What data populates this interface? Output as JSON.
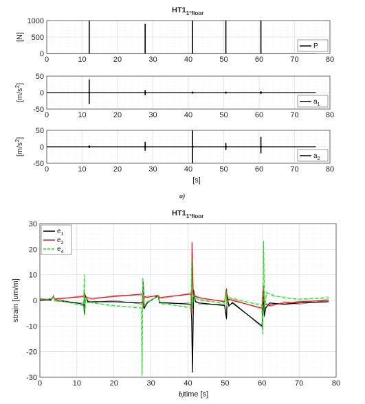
{
  "captions": [
    "a)",
    "b)"
  ],
  "chart_data": [
    {
      "type": "line",
      "title": "HT1",
      "title_sub": "1°floor",
      "xlabel": "",
      "ylabel": "[N]",
      "xlim": [
        0,
        80
      ],
      "ylim": [
        0,
        1000
      ],
      "xticks": [
        0,
        10,
        20,
        30,
        40,
        50,
        60,
        70,
        80
      ],
      "yticks": [
        0,
        500,
        1000
      ],
      "grid": true,
      "legend_position": "bottom-right",
      "series": [
        {
          "name": "P",
          "color": "#000000",
          "spikes": [
            {
              "x": 12.0,
              "y": 1000
            },
            {
              "x": 27.8,
              "y": 900
            },
            {
              "x": 41.2,
              "y": 1000
            },
            {
              "x": 50.6,
              "y": 1000
            },
            {
              "x": 60.5,
              "y": 1000
            }
          ]
        }
      ]
    },
    {
      "type": "line",
      "title": "",
      "xlabel": "",
      "ylabel": "[m/s",
      "ylabel_sup": "2",
      "ylabel_end": "]",
      "xlim": [
        0,
        80
      ],
      "ylim": [
        -50,
        50
      ],
      "xticks": [
        0,
        10,
        20,
        30,
        40,
        50,
        60,
        70,
        80
      ],
      "yticks": [
        -50,
        0,
        50
      ],
      "grid": true,
      "legend_position": "bottom-right",
      "series": [
        {
          "name": "a",
          "name_sub": "1",
          "color": "#000000",
          "spikes": [
            {
              "x": 12.0,
              "y": 40,
              "y2": -35
            },
            {
              "x": 27.8,
              "y": 8,
              "y2": -8
            },
            {
              "x": 41.2,
              "y": 3,
              "y2": -3
            },
            {
              "x": 50.6,
              "y": 3,
              "y2": -3
            },
            {
              "x": 60.5,
              "y": 4,
              "y2": -4
            }
          ]
        }
      ]
    },
    {
      "type": "line",
      "title": "",
      "xlabel": "[s]",
      "ylabel": "[m/s",
      "ylabel_sup": "2",
      "ylabel_end": "]",
      "xlim": [
        0,
        80
      ],
      "ylim": [
        -50,
        50
      ],
      "xticks": [
        0,
        10,
        20,
        30,
        40,
        50,
        60,
        70,
        80
      ],
      "yticks": [
        -50,
        0,
        50
      ],
      "grid": true,
      "legend_position": "bottom-right",
      "series": [
        {
          "name": "a",
          "name_sub": "2",
          "color": "#000000",
          "spikes": [
            {
              "x": 12.0,
              "y": 4,
              "y2": -4
            },
            {
              "x": 27.8,
              "y": 15,
              "y2": -12
            },
            {
              "x": 41.2,
              "y": 50,
              "y2": -50
            },
            {
              "x": 50.6,
              "y": 12,
              "y2": -10
            },
            {
              "x": 60.5,
              "y": 30,
              "y2": -20
            }
          ]
        }
      ]
    },
    {
      "type": "line",
      "title": "HT1",
      "title_sub": "1°floor",
      "xlabel": "time [s]",
      "ylabel": "strain [um/m]",
      "xlim": [
        0,
        80
      ],
      "ylim": [
        -30,
        30
      ],
      "xticks": [
        0,
        10,
        20,
        30,
        40,
        50,
        60,
        70,
        80
      ],
      "yticks": [
        -30,
        -20,
        -10,
        0,
        10,
        20,
        30
      ],
      "grid": true,
      "legend_position": "top-left",
      "series": [
        {
          "name": "e",
          "name_sub": "1",
          "color": "#000000",
          "dash": "solid",
          "x": [
            0,
            3,
            3.7,
            4,
            11.9,
            12.0,
            12.2,
            13,
            20,
            27.7,
            27.9,
            28.2,
            29,
            32,
            32.3,
            33,
            40.8,
            41.0,
            41.2,
            41.5,
            42,
            43,
            49.9,
            50.4,
            50.6,
            51,
            52,
            60.0,
            60.3,
            60.6,
            61,
            62,
            66,
            70,
            78
          ],
          "y": [
            0,
            0.3,
            1.5,
            0.3,
            -1.5,
            -5,
            2,
            -0.5,
            -0.5,
            -1,
            7,
            -3,
            -1,
            2,
            -1,
            -0.8,
            -1.5,
            -8,
            -28,
            4,
            -0.5,
            -1,
            -2,
            -7,
            2,
            -2,
            -1,
            -10,
            3,
            -6,
            -3,
            -1,
            -1.5,
            -1,
            -0.5
          ]
        },
        {
          "name": "e",
          "name_sub": "2",
          "color": "#e8141b",
          "dash": "solid",
          "x": [
            0,
            3,
            3.7,
            4,
            11.9,
            12.0,
            12.2,
            14,
            20,
            27.7,
            27.9,
            28.2,
            29,
            32,
            32.3,
            33,
            40.8,
            41.0,
            41.1,
            41.4,
            42,
            44,
            49.9,
            50.4,
            50.6,
            51,
            52,
            60.0,
            60.3,
            60.6,
            61,
            62,
            66,
            70,
            78
          ],
          "y": [
            0.3,
            0.6,
            1.5,
            0.6,
            1.5,
            4,
            1.2,
            0.8,
            1.5,
            2.5,
            -3,
            1.5,
            1.2,
            2,
            1,
            1.2,
            2.5,
            -5,
            22.5,
            3,
            1.5,
            0.8,
            -0.5,
            4.5,
            -1,
            0.5,
            0,
            -3,
            6,
            -1,
            -1.5,
            -2,
            -1,
            -0.5,
            0
          ]
        },
        {
          "name": "e",
          "name_sub": "4",
          "color": "#23e023",
          "dash": "dashed",
          "x": [
            0,
            3,
            3.7,
            4,
            11.8,
            12.0,
            12.1,
            12.4,
            14,
            20,
            27.4,
            27.6,
            27.8,
            28.1,
            29,
            32,
            32.3,
            33,
            40.8,
            41.0,
            41.2,
            41.5,
            43,
            49.9,
            50.2,
            50.5,
            51,
            53,
            59.9,
            60.2,
            60.4,
            60.7,
            61.2,
            63,
            66,
            70,
            78
          ],
          "y": [
            0.5,
            0.5,
            1.5,
            0.3,
            -2,
            10,
            -6,
            1,
            -1,
            -2,
            -3,
            -29,
            8.5,
            -2,
            -1,
            2,
            -0.5,
            -1,
            -3,
            16,
            -3,
            2,
            0,
            -1,
            4,
            -2,
            1,
            0.5,
            -2,
            -13,
            23,
            -3,
            3,
            2,
            1,
            0.5,
            1
          ]
        }
      ]
    }
  ]
}
